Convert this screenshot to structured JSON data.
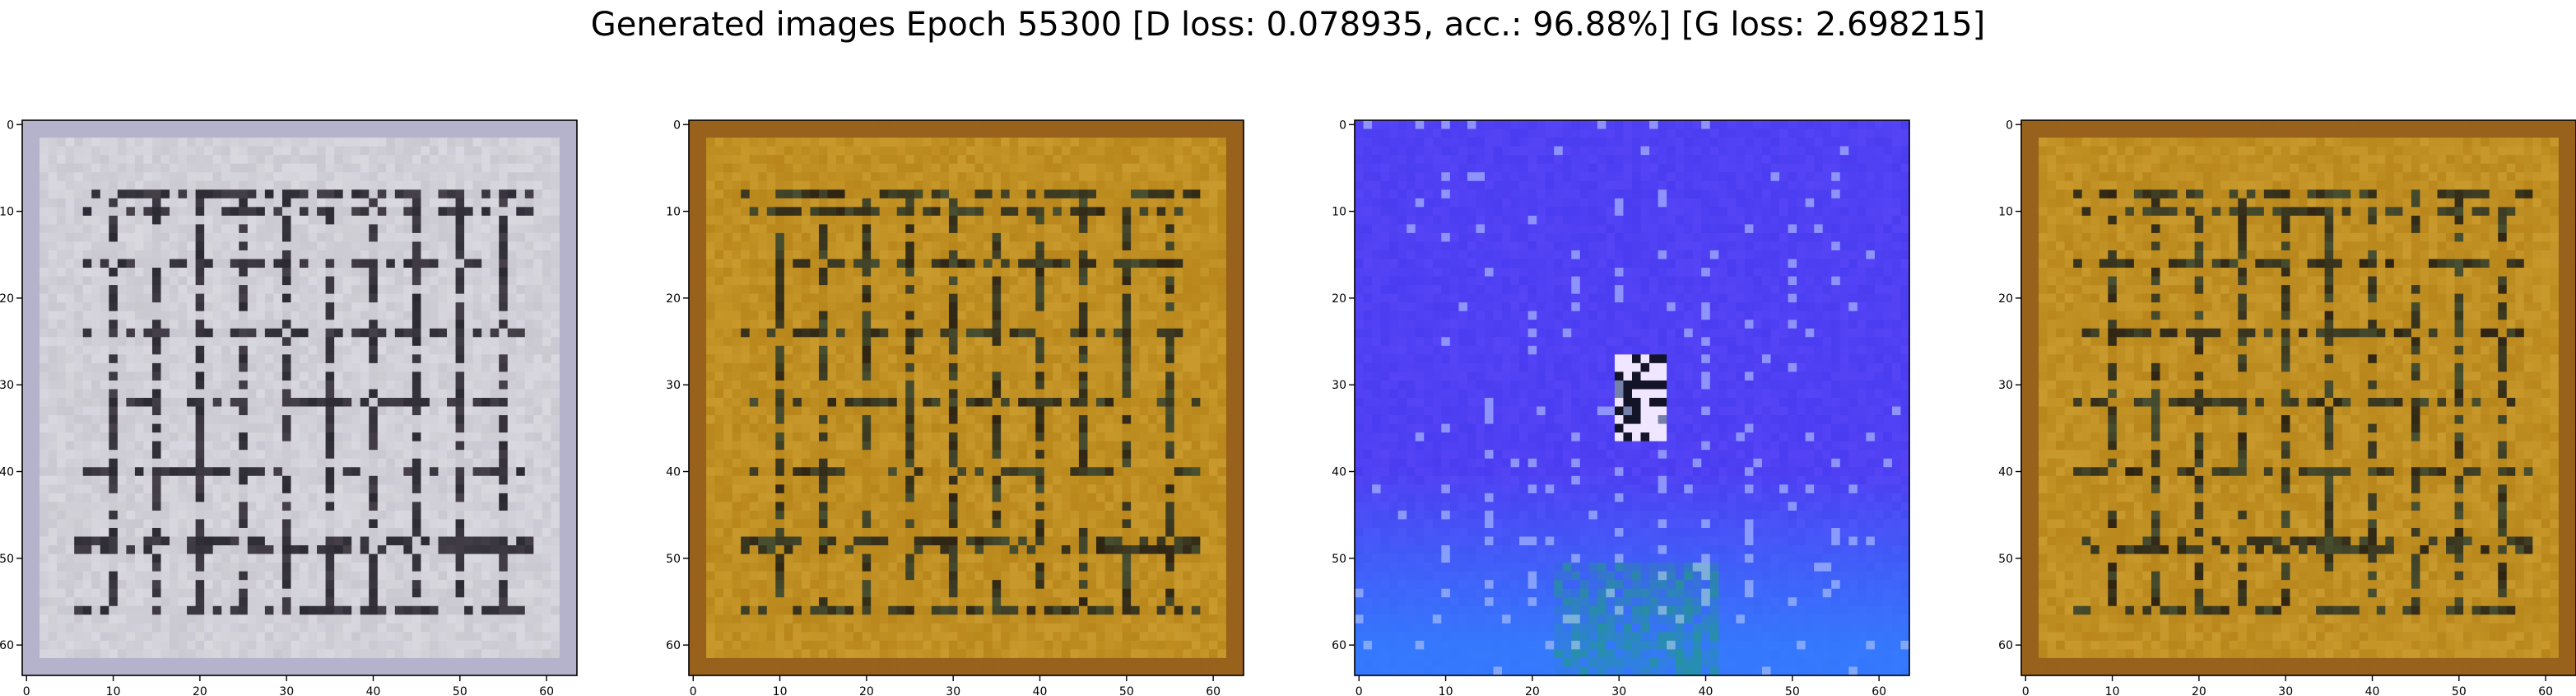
{
  "figure": {
    "title": "Generated images Epoch 55300 [D loss: 0.078935, acc.: 96.88%] [G loss: 2.698215]"
  },
  "panels": [
    {
      "id": "image-1",
      "palette": "gray",
      "x_ticks": [
        "0",
        "10",
        "20",
        "30",
        "40",
        "50",
        "60"
      ],
      "y_ticks": [
        "0",
        "10",
        "20",
        "30",
        "40",
        "50",
        "60"
      ]
    },
    {
      "id": "image-2",
      "palette": "gold",
      "x_ticks": [
        "0",
        "10",
        "20",
        "30",
        "40",
        "50",
        "60"
      ],
      "y_ticks": [
        "0",
        "10",
        "20",
        "30",
        "40",
        "50",
        "60"
      ]
    },
    {
      "id": "image-3",
      "palette": "blue",
      "x_ticks": [
        "0",
        "10",
        "20",
        "30",
        "40",
        "50",
        "60"
      ],
      "y_ticks": [
        "0",
        "10",
        "20",
        "30",
        "40",
        "50",
        "60"
      ]
    },
    {
      "id": "image-4",
      "palette": "gold",
      "x_ticks": [
        "0",
        "10",
        "20",
        "30",
        "40",
        "50",
        "60"
      ],
      "y_ticks": [
        "0",
        "10",
        "20",
        "30",
        "40",
        "50",
        "60"
      ]
    }
  ],
  "colors": {
    "gray_base": "#c9c7cf",
    "gray_dark": "#2b2a33",
    "gold_base": "#b8861a",
    "gold_dark": "#2f2412",
    "blue_base": "#4a3cf0",
    "blue_light": "#2f86ff",
    "blue_green": "#1e9c7a"
  },
  "image_grid_size": 64
}
